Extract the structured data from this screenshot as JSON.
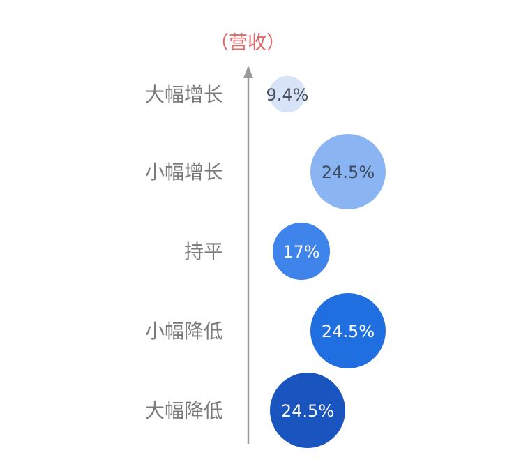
{
  "chart_data": {
    "type": "bubble",
    "ylabel": "（营收）",
    "categories": [
      "大幅增长",
      "小幅增长",
      "持平",
      "小幅降低",
      "大幅降低"
    ],
    "values": [
      9.4,
      24.5,
      17,
      24.5,
      24.5
    ],
    "data_labels": [
      "9.4%",
      "24.5%",
      "17%",
      "24.5%",
      "24.5%"
    ],
    "colors": [
      "#d7e3f6",
      "#8bb5f2",
      "#3f84ea",
      "#1f6fe0",
      "#1a55bf"
    ],
    "label_colors": [
      "#4a5260",
      "#3d4a60",
      "#ffffff",
      "#ffffff",
      "#ffffff"
    ],
    "ylabel_color": "#e06a6a",
    "category_color": "#7a7a7a",
    "axis_color": "#9a9a9a",
    "grid": false,
    "legend": "none"
  }
}
